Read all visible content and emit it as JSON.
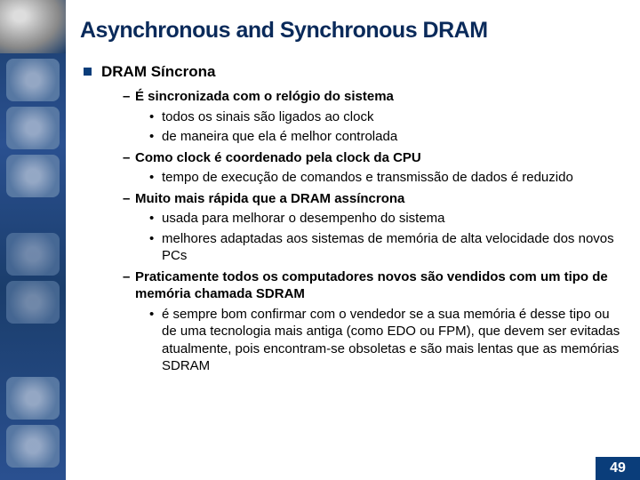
{
  "title": "Asynchronous and Synchronous DRAM",
  "heading": "DRAM Síncrona",
  "items": [
    {
      "lvl": 2,
      "text": "É sincronizada com o relógio do sistema"
    },
    {
      "lvl": 3,
      "text": "todos os sinais são ligados ao clock"
    },
    {
      "lvl": 3,
      "text": "de maneira que ela é melhor controlada"
    },
    {
      "lvl": 2,
      "text": "Como clock é coordenado pela clock da CPU"
    },
    {
      "lvl": 3,
      "text": "tempo de execução de comandos e transmissão de dados é reduzido"
    },
    {
      "lvl": 2,
      "text": "Muito mais rápida que a DRAM assíncrona"
    },
    {
      "lvl": 3,
      "text": "usada para melhorar o desempenho do sistema"
    },
    {
      "lvl": 3,
      "text": "melhores adaptadas aos sistemas de memória de alta velocidade dos novos PCs"
    },
    {
      "lvl": 2,
      "text": "Praticamente todos os computadores novos são vendidos com um tipo de memória chamada SDRAM"
    },
    {
      "lvl": 3,
      "text": "é sempre bom confirmar com o vendedor se a sua memória é desse tipo ou de uma tecnologia mais antiga (como EDO ou FPM), que devem ser evitadas atualmente, pois encontram-se obsoletas e são mais lentas que as memórias SDRAM"
    }
  ],
  "page_number": "49",
  "colors": {
    "title": "#0a2a5a",
    "bullet_square": "#0a3d7a",
    "page_badge_bg": "#0a3d7a",
    "sidebar_gradient_a": "#1a3d6b",
    "sidebar_gradient_b": "#2a5090"
  },
  "fontsize": {
    "title": 25,
    "heading": 17,
    "body": 15
  }
}
